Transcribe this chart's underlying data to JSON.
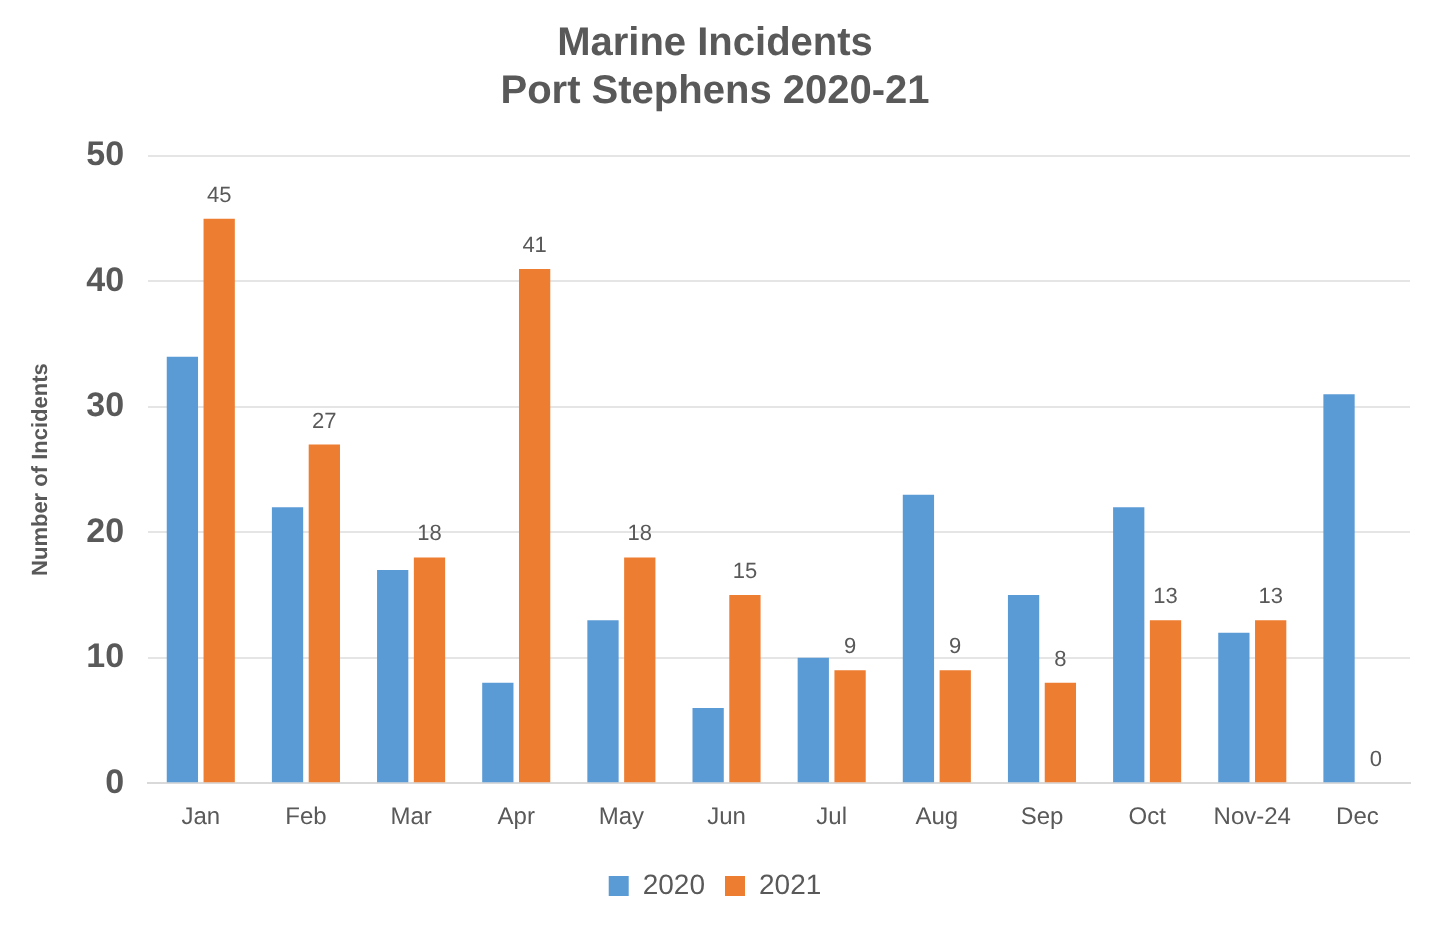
{
  "chart_data": {
    "type": "bar",
    "title": "Marine Incidents\nPort Stephens 2020-21",
    "ylabel": "Number of Incidents",
    "categories": [
      "Jan",
      "Feb",
      "Mar",
      "Apr",
      "May",
      "Jun",
      "Jul",
      "Aug",
      "Sep",
      "Oct",
      "Nov-24",
      "Dec"
    ],
    "series": [
      {
        "name": "2020",
        "color": "#5b9bd5",
        "values": [
          34,
          22,
          17,
          8,
          13,
          6,
          10,
          23,
          15,
          22,
          12,
          31
        ]
      },
      {
        "name": "2021",
        "color": "#ed7d31",
        "values": [
          45,
          27,
          18,
          41,
          18,
          15,
          9,
          9,
          8,
          13,
          13,
          0
        ],
        "value_labels": [
          "45",
          "27",
          "18",
          "41",
          "18",
          "15",
          "9",
          "9",
          "8",
          "13",
          "13",
          "0"
        ]
      }
    ],
    "ylim": [
      0,
      50
    ],
    "yticks": [
      0,
      10,
      20,
      30,
      40,
      50
    ],
    "grid": "y",
    "legend": "bottom"
  }
}
